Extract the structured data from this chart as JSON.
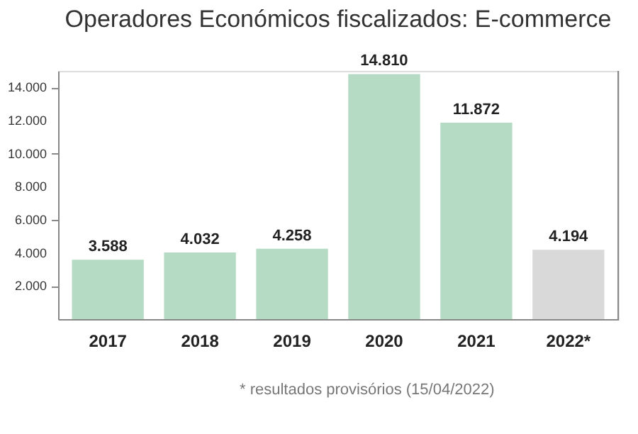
{
  "chart_data": {
    "type": "bar",
    "title": "Operadores Económicos fiscalizados: E-commerce",
    "categories": [
      "2017",
      "2018",
      "2019",
      "2020",
      "2021",
      "2022*"
    ],
    "values": [
      3588,
      4032,
      4258,
      14810,
      11872,
      4194
    ],
    "colors": [
      "#b5dbc5",
      "#b5dbc5",
      "#b5dbc5",
      "#b5dbc5",
      "#b5dbc5",
      "#d9d9d9"
    ],
    "value_labels": [
      "3.588",
      "4.032",
      "4.258",
      "14.810",
      "11.872",
      "4.194"
    ],
    "ylim": [
      0,
      15000
    ],
    "yticks": [
      {
        "value": 2000,
        "label": "2.000"
      },
      {
        "value": 4000,
        "label": "4.000"
      },
      {
        "value": 6000,
        "label": "6.000"
      },
      {
        "value": 8000,
        "label": "8.000"
      },
      {
        "value": 10000,
        "label": "10.000"
      },
      {
        "value": 12000,
        "label": "12.000"
      },
      {
        "value": 14000,
        "label": "14.000"
      }
    ],
    "annotations": [
      "* resultados provisórios (15/04/2022)"
    ],
    "grid": false
  }
}
